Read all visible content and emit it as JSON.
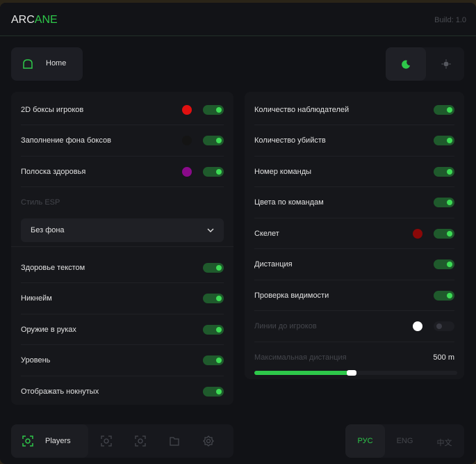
{
  "header": {
    "logo_a": "ARC",
    "logo_b": "ANE",
    "build": "Build: 1.0"
  },
  "home": {
    "label": "Home",
    "icon": "home-icon"
  },
  "theme": {
    "active": "dark",
    "icons": [
      "moon-icon",
      "sun-icon"
    ]
  },
  "accent": "#2ec84a",
  "left": {
    "rows": [
      {
        "label": "2D боксы игроков",
        "color": "#e01010",
        "on": true
      },
      {
        "label": "Заполнение фона боксов",
        "color": "#141414",
        "on": true
      },
      {
        "label": "Полоска здоровья",
        "color": "#8a0a8a",
        "on": true
      }
    ],
    "style_label": "Стиль ESP",
    "style_value": "Без фона",
    "rows2": [
      {
        "label": "Здоровье текстом",
        "on": true
      },
      {
        "label": "Никнейм",
        "on": true
      },
      {
        "label": "Оружие в руках",
        "on": true
      },
      {
        "label": "Уровень",
        "on": true
      },
      {
        "label": "Отображать нокнутых",
        "on": true
      }
    ]
  },
  "right": {
    "rows": [
      {
        "label": "Количество наблюдателей",
        "on": true
      },
      {
        "label": "Количество убийств",
        "on": true
      },
      {
        "label": "Номер команды",
        "on": true
      },
      {
        "label": "Цвета по командам",
        "on": true
      },
      {
        "label": "Скелет",
        "color": "#8a0808",
        "on": true
      },
      {
        "label": "Дистанция",
        "on": true
      },
      {
        "label": "Проверка видимости",
        "on": true
      },
      {
        "label": "Линии до игроков",
        "color": "#ffffff",
        "on": false,
        "disabled": true
      }
    ],
    "distance_label": "Максимальная дистанция",
    "distance_value": "500 m",
    "distance_fraction": 0.47
  },
  "nav": {
    "active_label": "Players",
    "icons": [
      "players-target-icon",
      "radar-icon",
      "aim-icon",
      "folder-icon",
      "gear-icon"
    ]
  },
  "lang": {
    "options": [
      "РУС",
      "ENG",
      "中文"
    ],
    "active": 0
  }
}
